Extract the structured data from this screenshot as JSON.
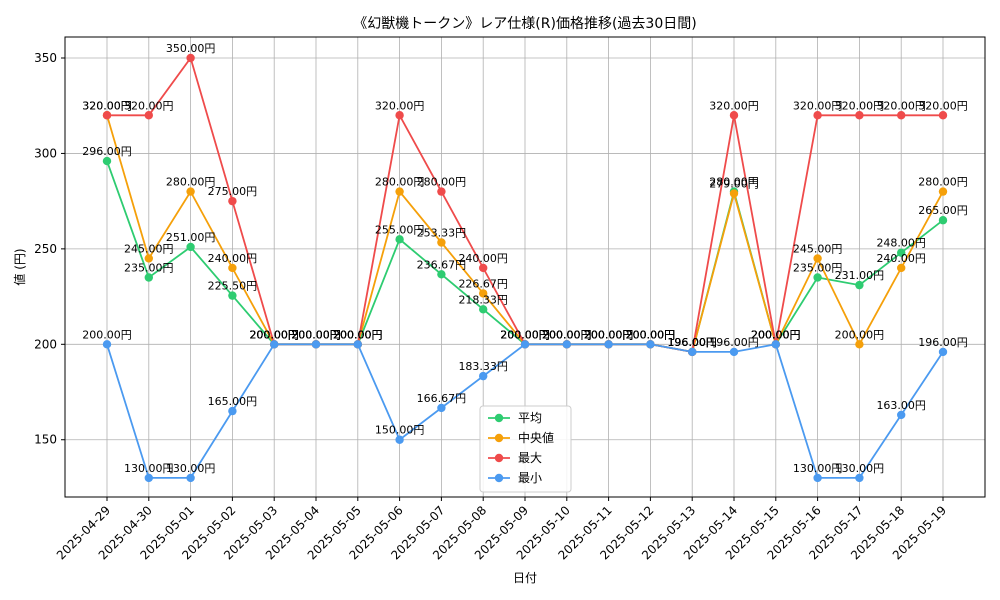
{
  "chart_data": {
    "type": "line",
    "title": "《幻獣機トークン》レア仕様(R)価格推移(過去30日間)",
    "xlabel": "日付",
    "ylabel": "値 (円)",
    "ylim": [
      120,
      361
    ],
    "yticks": [
      150,
      200,
      250,
      300,
      350
    ],
    "grid": true,
    "legend_position": "bottom-center",
    "label_suffix": "円",
    "categories": [
      "2025-04-29",
      "2025-04-30",
      "2025-05-01",
      "2025-05-02",
      "2025-05-03",
      "2025-05-04",
      "2025-05-05",
      "2025-05-06",
      "2025-05-07",
      "2025-05-08",
      "2025-05-09",
      "2025-05-10",
      "2025-05-11",
      "2025-05-12",
      "2025-05-13",
      "2025-05-14",
      "2025-05-15",
      "2025-05-16",
      "2025-05-17",
      "2025-05-18",
      "2025-05-19"
    ],
    "series": [
      {
        "name": "平均",
        "color": "#2ecc71",
        "values": [
          296.0,
          235.0,
          251.0,
          225.5,
          200.0,
          200.0,
          200.0,
          255.0,
          236.67,
          218.33,
          200.0,
          200.0,
          200.0,
          200.0,
          196.0,
          280.0,
          200.0,
          235.0,
          231.0,
          248.0,
          265.0
        ]
      },
      {
        "name": "中央値",
        "color": "#f5a00a",
        "values": [
          320.0,
          245.0,
          280.0,
          240.0,
          200.0,
          200.0,
          200.0,
          280.0,
          253.33,
          226.67,
          200.0,
          200.0,
          200.0,
          200.0,
          196.0,
          279.0,
          200.0,
          245.0,
          200.0,
          240.0,
          280.0
        ]
      },
      {
        "name": "最大",
        "color": "#ef4b4b",
        "values": [
          320.0,
          320.0,
          350.0,
          275.0,
          200.0,
          200.0,
          200.0,
          320.0,
          280.0,
          240.0,
          200.0,
          200.0,
          200.0,
          200.0,
          196.0,
          320.0,
          200.0,
          320.0,
          320.0,
          320.0,
          320.0
        ]
      },
      {
        "name": "最小",
        "color": "#4b9af0",
        "values": [
          200.0,
          130.0,
          130.0,
          165.0,
          200.0,
          200.0,
          200.0,
          150.0,
          166.67,
          183.33,
          200.0,
          200.0,
          200.0,
          200.0,
          196.0,
          196.0,
          200.0,
          130.0,
          130.0,
          163.0,
          196.0
        ]
      }
    ]
  }
}
